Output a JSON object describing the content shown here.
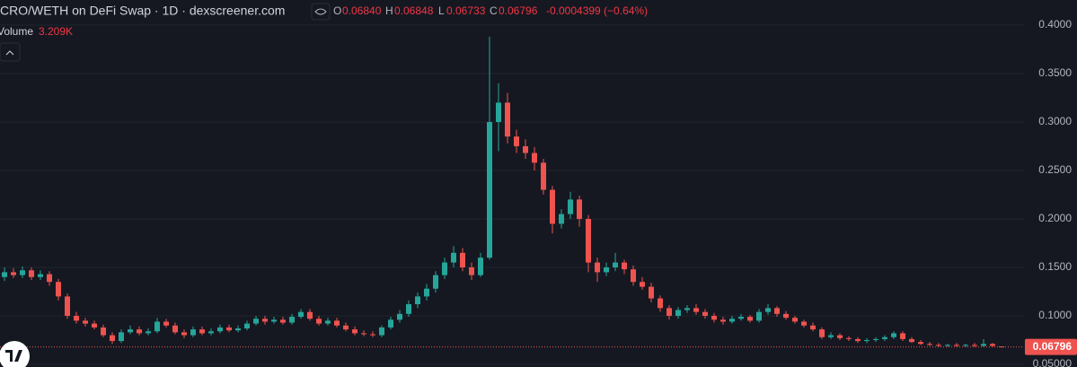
{
  "header": {
    "title": "CRO/WETH on DeFi Swap · 1D · dexscreener.com",
    "ohlc": [
      {
        "key": "O",
        "value": "0.06840"
      },
      {
        "key": "H",
        "value": "0.06848"
      },
      {
        "key": "L",
        "value": "0.06733"
      },
      {
        "key": "C",
        "value": "0.06796"
      }
    ],
    "change": "-0.0004399 (−0.64%)",
    "volume_label": "Volume",
    "volume_value": "3.209K"
  },
  "chart_data": {
    "type": "candlestick",
    "up_color": "#26a69a",
    "down_color": "#ef5350",
    "grid": true,
    "ylim": [
      0.0472,
      0.4259
    ],
    "yticks": [
      {
        "value": 0.05,
        "label": "0.05000"
      },
      {
        "value": 0.1,
        "label": "0.1000"
      },
      {
        "value": 0.15,
        "label": "0.1500"
      },
      {
        "value": 0.2,
        "label": "0.2000"
      },
      {
        "value": 0.25,
        "label": "0.2500"
      },
      {
        "value": 0.3,
        "label": "0.3000"
      },
      {
        "value": 0.35,
        "label": "0.3500"
      },
      {
        "value": 0.4,
        "label": "0.4000"
      }
    ],
    "last_price": {
      "value": 0.06796,
      "label": "0.06796"
    },
    "open": [
      0.14,
      0.145,
      0.142,
      0.147,
      0.14,
      0.143,
      0.135,
      0.12,
      0.1,
      0.095,
      0.092,
      0.088,
      0.08,
      0.074,
      0.083,
      0.086,
      0.082,
      0.084,
      0.094,
      0.09,
      0.083,
      0.08,
      0.086,
      0.082,
      0.084,
      0.088,
      0.085,
      0.087,
      0.092,
      0.097,
      0.094,
      0.096,
      0.093,
      0.099,
      0.104,
      0.097,
      0.092,
      0.095,
      0.09,
      0.086,
      0.082,
      0.081,
      0.08,
      0.088,
      0.096,
      0.102,
      0.112,
      0.12,
      0.128,
      0.142,
      0.155,
      0.165,
      0.15,
      0.142,
      0.16,
      0.3,
      0.32,
      0.285,
      0.275,
      0.268,
      0.258,
      0.23,
      0.195,
      0.205,
      0.22,
      0.2,
      0.155,
      0.145,
      0.15,
      0.155,
      0.148,
      0.135,
      0.13,
      0.118,
      0.108,
      0.1,
      0.106,
      0.108,
      0.104,
      0.1,
      0.096,
      0.094,
      0.097,
      0.099,
      0.095,
      0.104,
      0.108,
      0.102,
      0.098,
      0.094,
      0.09,
      0.086,
      0.078,
      0.08,
      0.077,
      0.076,
      0.074,
      0.075,
      0.076,
      0.078,
      0.082,
      0.076,
      0.073,
      0.071,
      0.07,
      0.069,
      0.07,
      0.069,
      0.07,
      0.069,
      0.071,
      0.0684
    ],
    "high": [
      0.15,
      0.149,
      0.151,
      0.15,
      0.147,
      0.146,
      0.138,
      0.123,
      0.104,
      0.098,
      0.095,
      0.091,
      0.083,
      0.086,
      0.09,
      0.089,
      0.087,
      0.098,
      0.097,
      0.093,
      0.086,
      0.089,
      0.089,
      0.087,
      0.091,
      0.091,
      0.09,
      0.095,
      0.1,
      0.1,
      0.099,
      0.099,
      0.102,
      0.107,
      0.107,
      0.1,
      0.098,
      0.098,
      0.093,
      0.089,
      0.085,
      0.084,
      0.09,
      0.099,
      0.106,
      0.116,
      0.124,
      0.133,
      0.146,
      0.16,
      0.172,
      0.17,
      0.155,
      0.165,
      0.388,
      0.34,
      0.33,
      0.292,
      0.282,
      0.274,
      0.262,
      0.234,
      0.21,
      0.228,
      0.224,
      0.204,
      0.16,
      0.155,
      0.165,
      0.158,
      0.152,
      0.14,
      0.134,
      0.121,
      0.111,
      0.109,
      0.111,
      0.112,
      0.107,
      0.103,
      0.099,
      0.1,
      0.102,
      0.101,
      0.107,
      0.112,
      0.11,
      0.105,
      0.1,
      0.096,
      0.093,
      0.088,
      0.083,
      0.082,
      0.079,
      0.078,
      0.077,
      0.078,
      0.08,
      0.084,
      0.084,
      0.078,
      0.075,
      0.073,
      0.072,
      0.071,
      0.072,
      0.071,
      0.072,
      0.076,
      0.072,
      0.06848
    ],
    "low": [
      0.136,
      0.139,
      0.139,
      0.137,
      0.137,
      0.131,
      0.116,
      0.097,
      0.092,
      0.089,
      0.086,
      0.078,
      0.071,
      0.072,
      0.081,
      0.08,
      0.08,
      0.082,
      0.088,
      0.081,
      0.077,
      0.078,
      0.08,
      0.08,
      0.082,
      0.083,
      0.083,
      0.085,
      0.09,
      0.091,
      0.092,
      0.091,
      0.091,
      0.097,
      0.095,
      0.09,
      0.09,
      0.088,
      0.084,
      0.08,
      0.079,
      0.078,
      0.078,
      0.086,
      0.093,
      0.099,
      0.108,
      0.116,
      0.124,
      0.138,
      0.15,
      0.146,
      0.137,
      0.14,
      0.158,
      0.27,
      0.278,
      0.268,
      0.262,
      0.25,
      0.225,
      0.185,
      0.19,
      0.2,
      0.192,
      0.145,
      0.135,
      0.141,
      0.146,
      0.143,
      0.131,
      0.127,
      0.114,
      0.104,
      0.096,
      0.097,
      0.103,
      0.101,
      0.097,
      0.093,
      0.091,
      0.092,
      0.095,
      0.093,
      0.093,
      0.101,
      0.099,
      0.096,
      0.092,
      0.088,
      0.084,
      0.076,
      0.076,
      0.075,
      0.074,
      0.072,
      0.072,
      0.073,
      0.074,
      0.076,
      0.074,
      0.072,
      0.07,
      0.069,
      0.068,
      0.068,
      0.068,
      0.068,
      0.068,
      0.068,
      0.068,
      0.06733
    ],
    "close": [
      0.145,
      0.142,
      0.147,
      0.14,
      0.143,
      0.135,
      0.12,
      0.1,
      0.095,
      0.092,
      0.088,
      0.08,
      0.074,
      0.083,
      0.086,
      0.082,
      0.084,
      0.094,
      0.09,
      0.083,
      0.08,
      0.086,
      0.082,
      0.084,
      0.088,
      0.085,
      0.087,
      0.092,
      0.097,
      0.094,
      0.096,
      0.093,
      0.099,
      0.104,
      0.097,
      0.092,
      0.095,
      0.09,
      0.086,
      0.082,
      0.081,
      0.08,
      0.088,
      0.096,
      0.102,
      0.112,
      0.12,
      0.128,
      0.142,
      0.155,
      0.165,
      0.15,
      0.142,
      0.16,
      0.3,
      0.32,
      0.285,
      0.275,
      0.268,
      0.258,
      0.23,
      0.195,
      0.205,
      0.22,
      0.2,
      0.155,
      0.145,
      0.15,
      0.155,
      0.148,
      0.135,
      0.13,
      0.118,
      0.108,
      0.1,
      0.106,
      0.108,
      0.104,
      0.1,
      0.096,
      0.094,
      0.097,
      0.099,
      0.095,
      0.104,
      0.108,
      0.102,
      0.098,
      0.094,
      0.09,
      0.086,
      0.078,
      0.08,
      0.077,
      0.076,
      0.074,
      0.075,
      0.076,
      0.078,
      0.082,
      0.076,
      0.073,
      0.071,
      0.07,
      0.069,
      0.07,
      0.069,
      0.07,
      0.069,
      0.071,
      0.069,
      0.06796
    ]
  }
}
